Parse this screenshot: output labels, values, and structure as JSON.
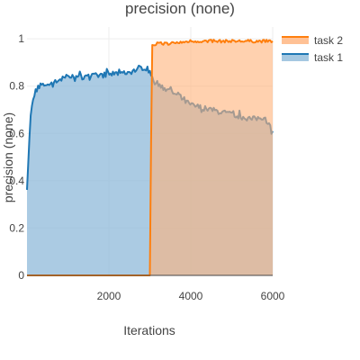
{
  "chart_data": {
    "type": "area",
    "title": "precision (none)",
    "xlabel": "Iterations",
    "ylabel": "precision (none)",
    "xlim": [
      0,
      6000
    ],
    "ylim": [
      0,
      1.05
    ],
    "x_ticks": [
      2000,
      4000,
      6000
    ],
    "y_ticks": [
      0,
      0.2,
      0.4,
      0.6,
      0.8,
      1
    ],
    "x_tick_labels": [
      "2000",
      "4000",
      "6000"
    ],
    "y_tick_labels": [
      "0",
      "0.2",
      "0.4",
      "0.6",
      "0.8",
      "1"
    ],
    "grid": true,
    "legend_position": "top-right",
    "series": [
      {
        "name": "task 2",
        "color": "#ff7f0e",
        "fill": "#ffb27a",
        "x": [
          0,
          2950,
          3000,
          3050,
          3200,
          3500,
          4000,
          4500,
          5000,
          5500,
          6000
        ],
        "y": [
          0,
          0,
          0,
          0.97,
          0.98,
          0.98,
          0.99,
          0.99,
          0.99,
          0.99,
          0.99
        ]
      },
      {
        "name": "task 1",
        "color": "#1f77b4",
        "fill": "#8fbad9",
        "x": [
          0,
          50,
          100,
          200,
          300,
          500,
          1000,
          1500,
          2000,
          2500,
          2900,
          3000,
          3100,
          3300,
          3500,
          4000,
          4500,
          5000,
          5500,
          5800,
          6000
        ],
        "y": [
          0.38,
          0.55,
          0.7,
          0.78,
          0.8,
          0.81,
          0.84,
          0.84,
          0.85,
          0.86,
          0.88,
          0.86,
          0.82,
          0.8,
          0.78,
          0.72,
          0.7,
          0.68,
          0.66,
          0.67,
          0.61
        ]
      }
    ]
  }
}
